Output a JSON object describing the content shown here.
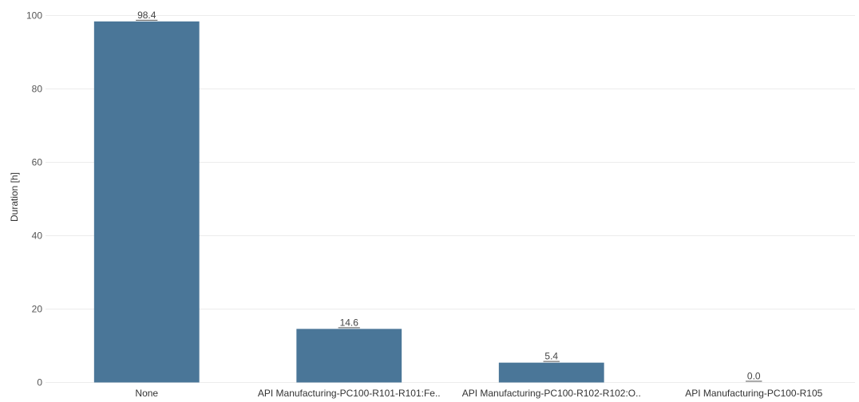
{
  "chart_data": {
    "type": "bar",
    "categories": [
      "None",
      "API Manufacturing-PC100-R101-R101:Fe..",
      "API Manufacturing-PC100-R102-R102:O..",
      "API Manufacturing-PC100-R105"
    ],
    "values": [
      98.4,
      14.6,
      5.4,
      0.0
    ],
    "data_labels": [
      "98.4",
      "14.6",
      "5.4",
      "0.0"
    ],
    "title": "",
    "xlabel": "",
    "ylabel": "Duration [h]",
    "ylim": [
      0,
      100
    ],
    "yticks": [
      0,
      20,
      40,
      60,
      80,
      100
    ],
    "grid": true,
    "legend": "none",
    "colors": {
      "bar": "#4a7698",
      "grid": "#ececec",
      "underline": "#555555"
    }
  }
}
